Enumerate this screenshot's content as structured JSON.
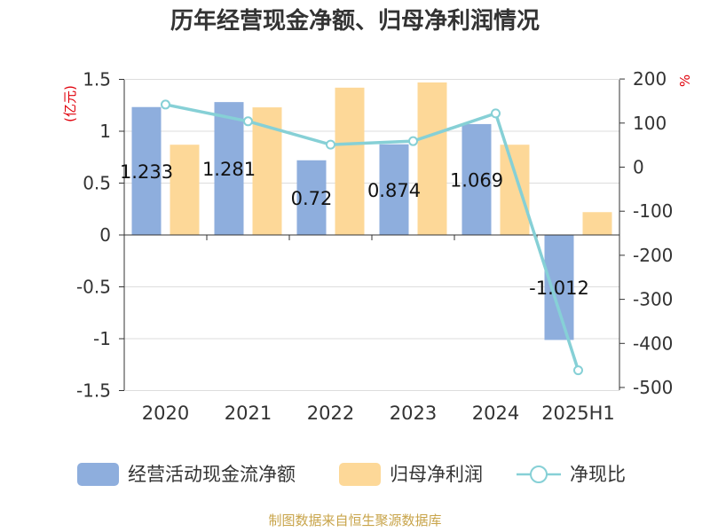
{
  "chart_data": {
    "type": "bar",
    "title": "历年经营现金净额、归母净利润情况",
    "categories": [
      "2020",
      "2021",
      "2022",
      "2023",
      "2024",
      "2025H1"
    ],
    "left_axis": {
      "unit": "(亿元)",
      "ylim": [
        -1.5,
        1.5
      ],
      "ticks": [
        "1.5",
        "1",
        "0.5",
        "0",
        "-0.5",
        "-1",
        "-1.5"
      ]
    },
    "right_axis": {
      "unit": "%",
      "ylim": [
        -500,
        200
      ],
      "ticks": [
        "200",
        "100",
        "0",
        "-100",
        "-200",
        "-300",
        "-400",
        "-500"
      ]
    },
    "series": [
      {
        "name": "经营活动现金流净额",
        "type": "bar",
        "axis": "left",
        "color": "#8eaedd",
        "values": [
          1.233,
          1.281,
          0.72,
          0.874,
          1.069,
          -1.012
        ],
        "labels": [
          "1.233",
          "1.281",
          "0.72",
          "0.874",
          "1.069",
          "-1.012"
        ]
      },
      {
        "name": "归母净利润",
        "type": "bar",
        "axis": "left",
        "color": "#fdd898",
        "values": [
          0.87,
          1.23,
          1.42,
          1.47,
          0.87,
          0.22
        ]
      },
      {
        "name": "净现比",
        "type": "line",
        "axis": "right",
        "color": "#86d0d6",
        "values": [
          142,
          104,
          51,
          59,
          122,
          -461
        ]
      }
    ],
    "grid": true,
    "legend_position": "bottom"
  },
  "footer": {
    "source": "制图数据来自恒生聚源数据库"
  }
}
